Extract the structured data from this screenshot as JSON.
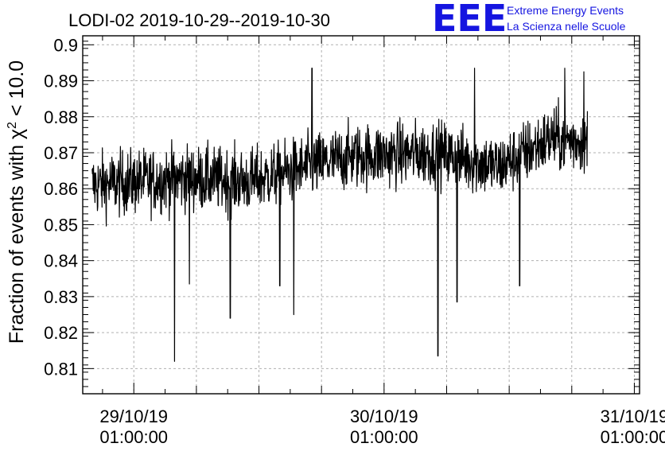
{
  "chart_data": {
    "type": "line",
    "title": "LODI-02 2019-10-29--2019-10-30",
    "ylabel": "Fraction of events with χ² < 10.0",
    "ylabel_parts": {
      "pre": "Fraction of events with ",
      "symbol": "χ",
      "sup": "2",
      "post": " < 10.0"
    },
    "xlabel": "",
    "ylim": [
      0.803,
      0.9025
    ],
    "xlim": [
      "2019-10-28 20:06",
      "2019-10-31 01:30"
    ],
    "yticks": [
      "0.81",
      "0.82",
      "0.83",
      "0.84",
      "0.85",
      "0.86",
      "0.87",
      "0.88",
      "0.89",
      "0.9"
    ],
    "yticks_values": [
      0.81,
      0.82,
      0.83,
      0.84,
      0.85,
      0.86,
      0.87,
      0.88,
      0.89,
      0.9
    ],
    "xticks": [
      {
        "date": "29/10/19",
        "time": "01:00:00",
        "t": "2019-10-29 01:00"
      },
      {
        "date": "30/10/19",
        "time": "01:00:00",
        "t": "2019-10-30 01:00"
      },
      {
        "date": "31/10/19",
        "time": "01:00:00",
        "t": "2019-10-31 01:00"
      }
    ],
    "grid": true,
    "series": [
      {
        "line_color": "#000000",
        "x_start": "2019-10-28 21:00",
        "x_end": "2019-10-30 20:30",
        "trend": [
          {
            "t": "2019-10-28 21:00",
            "y": 0.861
          },
          {
            "t": "2019-10-29 06:00",
            "y": 0.863
          },
          {
            "t": "2019-10-29 12:00",
            "y": 0.862
          },
          {
            "t": "2019-10-29 22:00",
            "y": 0.869
          },
          {
            "t": "2019-10-30 06:00",
            "y": 0.87
          },
          {
            "t": "2019-10-30 12:00",
            "y": 0.866
          },
          {
            "t": "2019-10-30 17:00",
            "y": 0.874
          },
          {
            "t": "2019-10-30 20:30",
            "y": 0.873
          }
        ],
        "noise_sigma": 0.006,
        "spikes": [
          {
            "t": "2019-10-29 04:55",
            "y": 0.812
          },
          {
            "t": "2019-10-29 10:15",
            "y": 0.824
          },
          {
            "t": "2019-10-29 16:20",
            "y": 0.825
          },
          {
            "t": "2019-10-30 06:10",
            "y": 0.8135
          },
          {
            "t": "2019-10-30 08:00",
            "y": 0.8285
          },
          {
            "t": "2019-10-30 14:00",
            "y": 0.833
          },
          {
            "t": "2019-10-29 06:20",
            "y": 0.8335
          },
          {
            "t": "2019-10-29 15:00",
            "y": 0.833
          },
          {
            "t": "2019-10-29 18:05",
            "y": 0.8935
          },
          {
            "t": "2019-10-30 09:40",
            "y": 0.8935
          },
          {
            "t": "2019-10-30 18:20",
            "y": 0.8935
          },
          {
            "t": "2019-10-30 20:10",
            "y": 0.8925
          }
        ]
      }
    ]
  },
  "logo": {
    "letters": "EEE",
    "line1": "Extreme Energy Events",
    "line2": "La Scienza nelle Scuole",
    "color": "#1515e0"
  }
}
